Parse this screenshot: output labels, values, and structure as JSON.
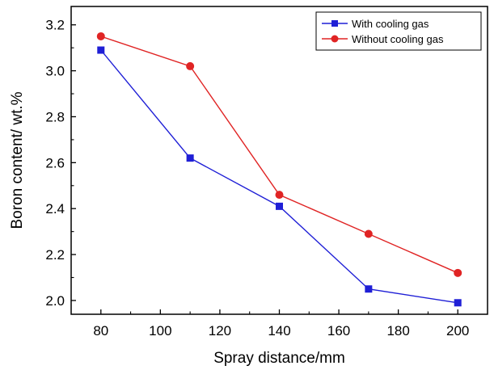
{
  "chart_data": {
    "type": "line",
    "title": "",
    "xlabel": "Spray distance/mm",
    "ylabel": "Boron content/ wt.%",
    "x": [
      80,
      110,
      140,
      170,
      200
    ],
    "xlim": [
      70,
      210
    ],
    "ylim": [
      1.94,
      3.28
    ],
    "xticks": [
      "80",
      "100",
      "120",
      "140",
      "160",
      "180",
      "200"
    ],
    "yticks": [
      "2.0",
      "2.2",
      "2.4",
      "2.6",
      "2.8",
      "3.0",
      "3.2"
    ],
    "grid": false,
    "legend_position": "top-right",
    "series": [
      {
        "name": "With cooling gas",
        "values": [
          3.09,
          2.62,
          2.41,
          2.05,
          1.99
        ],
        "color": "#1f1fd6",
        "marker": "square"
      },
      {
        "name": "Without cooling gas",
        "values": [
          3.15,
          3.02,
          2.46,
          2.29,
          2.12
        ],
        "color": "#e02424",
        "marker": "circle"
      }
    ]
  }
}
